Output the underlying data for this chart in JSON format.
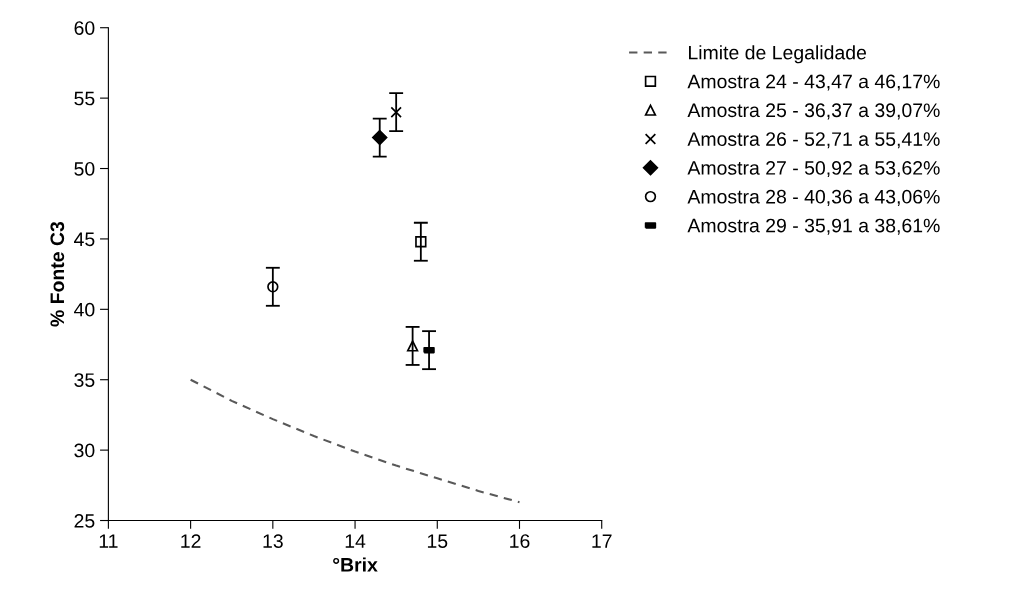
{
  "chart_data": {
    "type": "scatter",
    "xlabel": "°Brix",
    "ylabel": "% Fonte C3",
    "xlim": [
      11,
      17
    ],
    "xticks": [
      11,
      12,
      13,
      14,
      15,
      16,
      17
    ],
    "ylim": [
      25,
      60
    ],
    "yticks": [
      25,
      30,
      35,
      40,
      45,
      50,
      55,
      60
    ],
    "grid": false,
    "legend": "top right",
    "series": [
      {
        "name": "Limite de Legalidade",
        "type": "line",
        "line_style": "dashed",
        "marker": "none",
        "color": "#595959",
        "x": [
          12,
          12.5,
          13,
          13.5,
          14,
          14.5,
          15,
          15.5,
          16
        ],
        "values": [
          35.0,
          33.5,
          32.2,
          31.0,
          29.9,
          28.9,
          28.0,
          27.1,
          26.3
        ]
      },
      {
        "name": "Amostra 24 - 43,47 a 46,17%",
        "marker": "square",
        "color": "#000000",
        "x": [
          14.8
        ],
        "values": [
          44.8
        ],
        "errors": [
          1.35
        ]
      },
      {
        "name": "Amostra 25 - 36,37 a 39,07%",
        "marker": "triangle",
        "color": "#000000",
        "x": [
          14.7
        ],
        "values": [
          37.4
        ],
        "errors": [
          1.35
        ]
      },
      {
        "name": "Amostra 26 - 52,71 a 55,41%",
        "marker": "cross",
        "color": "#000000",
        "x": [
          14.5
        ],
        "values": [
          54.0
        ],
        "errors": [
          1.35
        ]
      },
      {
        "name": "Amostra 27 - 50,92 a 53,62%",
        "marker": "diamond",
        "color": "#000000",
        "x": [
          14.3
        ],
        "values": [
          52.2
        ],
        "errors": [
          1.35
        ]
      },
      {
        "name": "Amostra 28 - 40,36 a 43,06%",
        "marker": "circle",
        "color": "#000000",
        "x": [
          13.0
        ],
        "values": [
          41.6
        ],
        "errors": [
          1.35
        ]
      },
      {
        "name": "Amostra 29 - 35,91 a 38,61%",
        "color": "#000000",
        "x": [
          14.9
        ],
        "values": [
          37.1
        ],
        "errors": [
          1.35
        ]
      }
    ]
  }
}
